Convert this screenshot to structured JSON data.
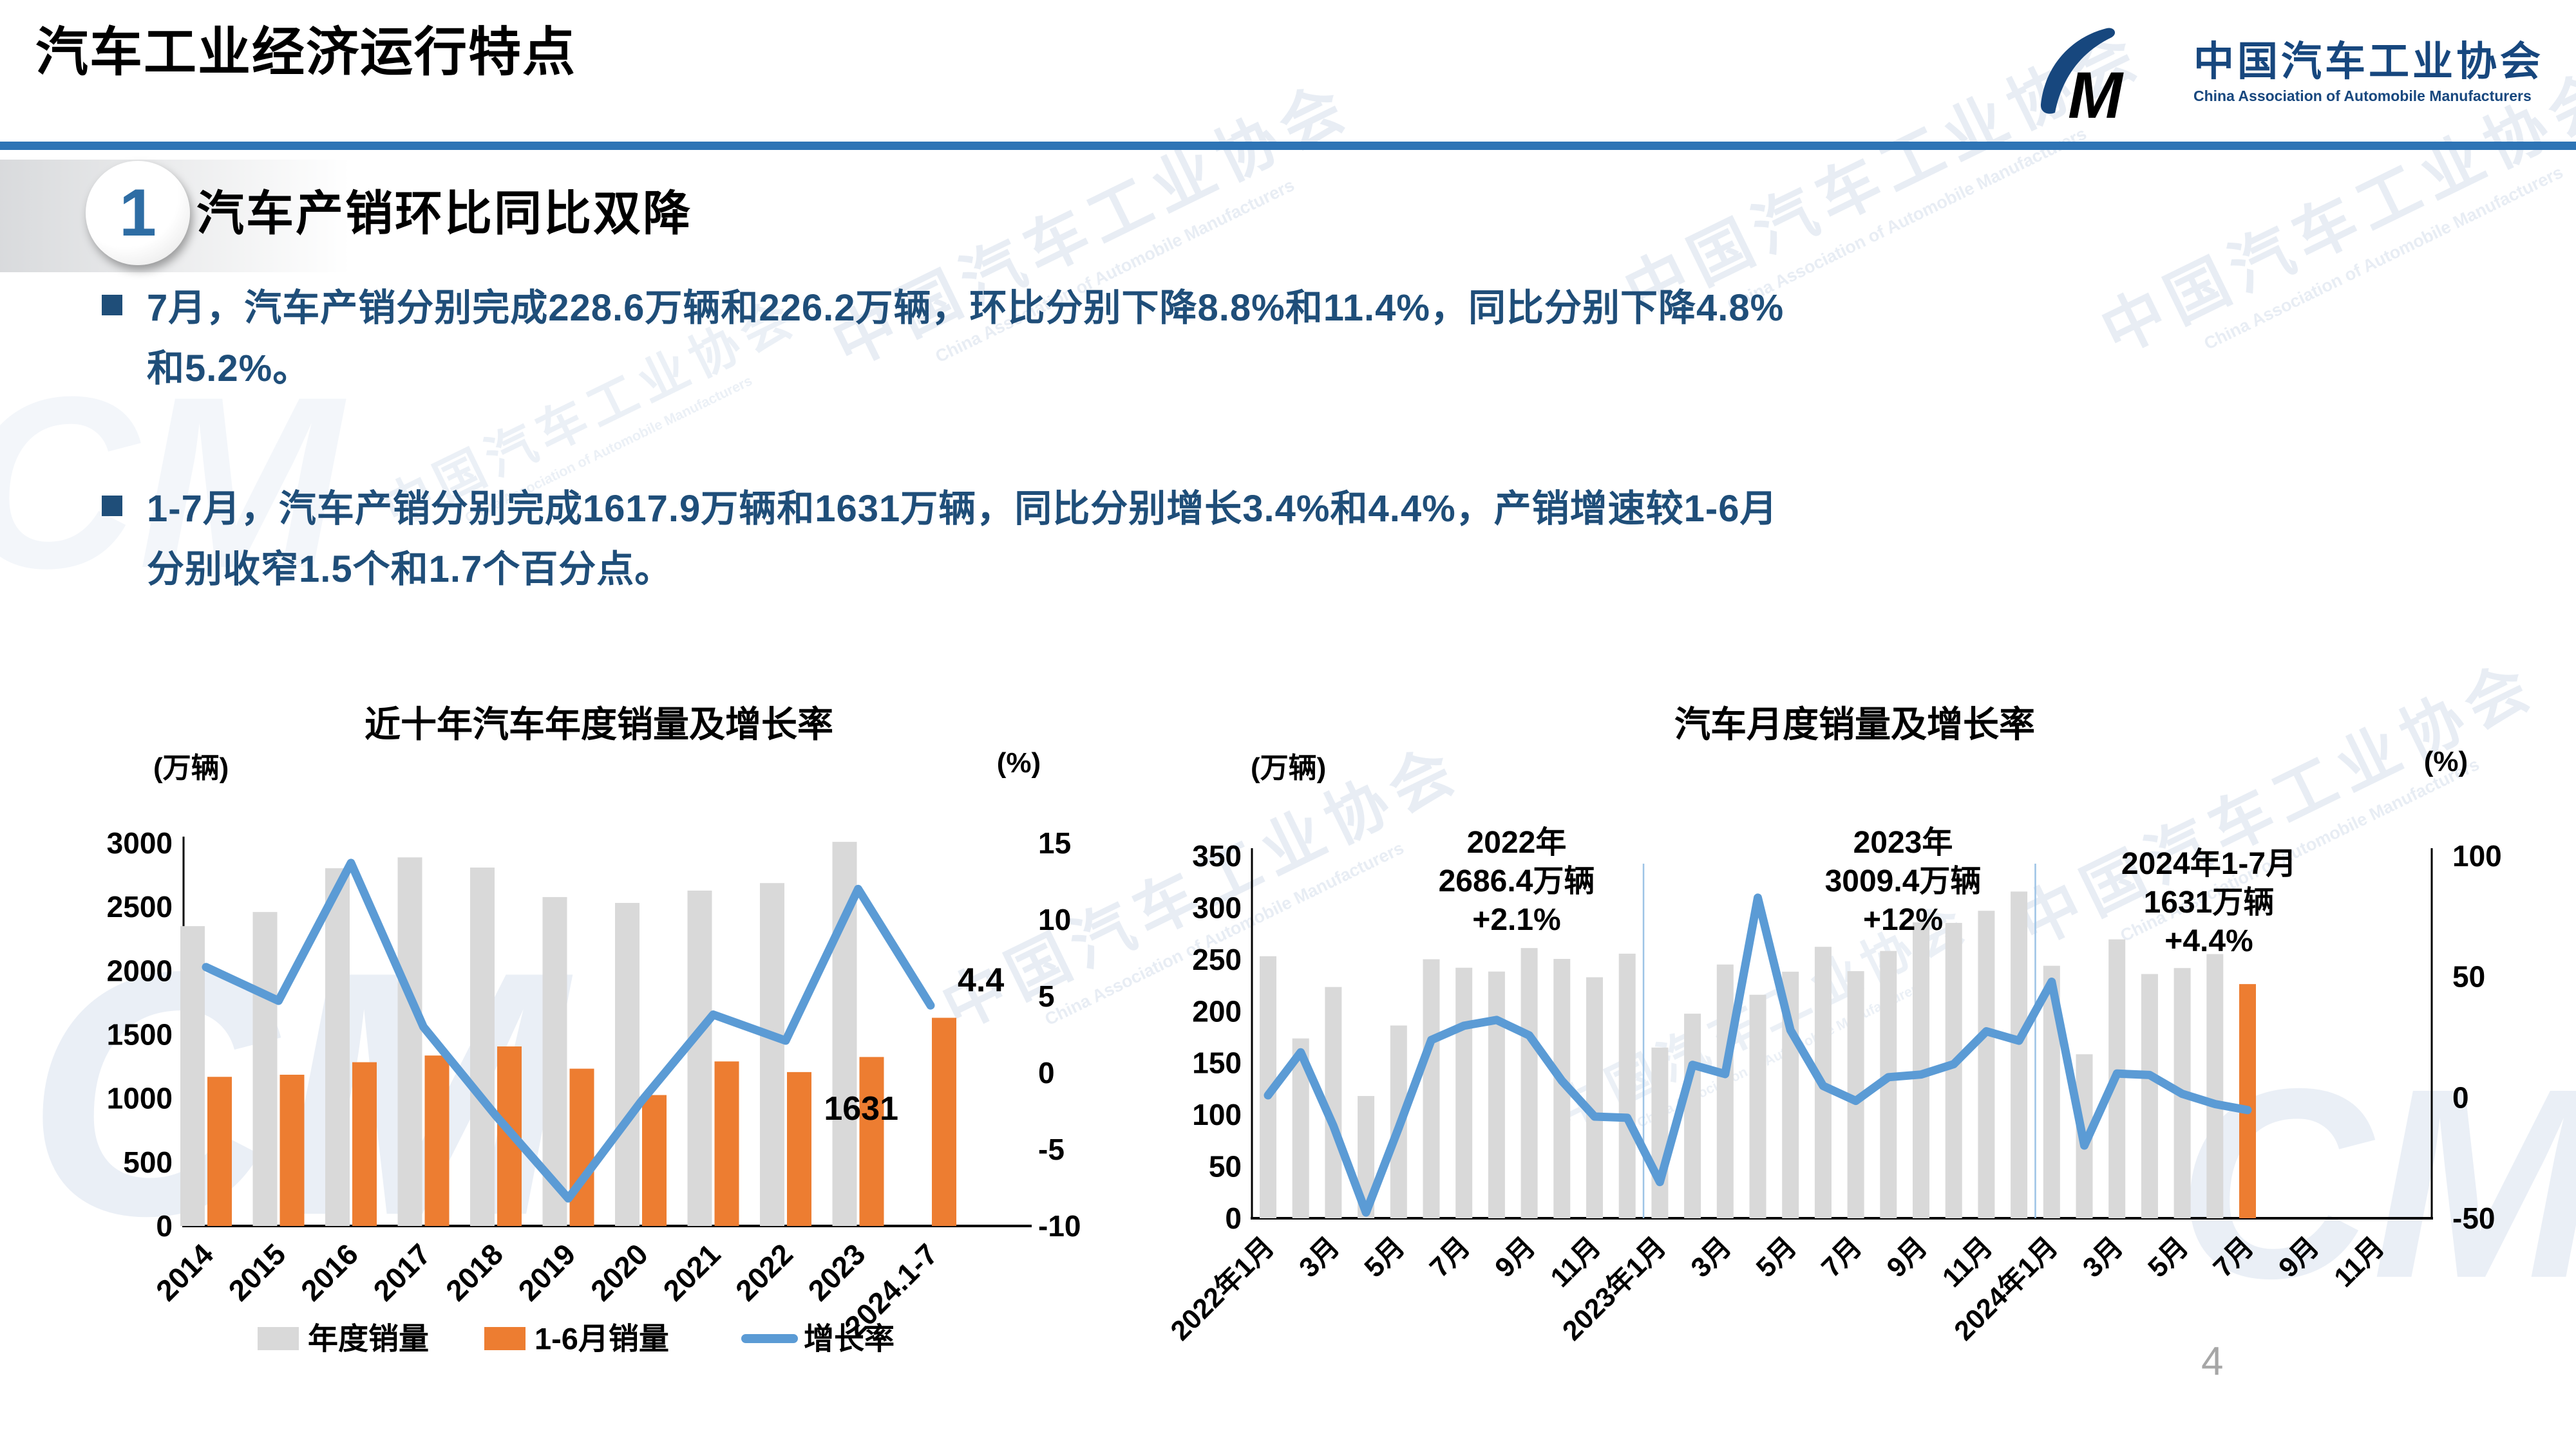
{
  "page": {
    "number": "4"
  },
  "header": {
    "title": "汽车工业经济运行特点",
    "logo_cn": "中国汽车工业协会",
    "logo_en": "China Association of Automobile Manufacturers"
  },
  "section": {
    "number": "1",
    "title": "汽车产销环比同比双降"
  },
  "bullets": [
    {
      "text": "7月，汽车产销分别完成228.6万辆和226.2万辆，环比分别下降8.8%和11.4%，同比分别下降4.8%\n和5.2%。"
    },
    {
      "text": "1-7月，汽车产销分别完成1617.9万辆和1631万辆，同比分别增长3.4%和4.4%，产销增速较1-6月\n分别收窄1.5个和1.7个百分点。"
    }
  ],
  "watermark": {
    "cn": "中国汽车工业协会",
    "en": "China Association of Automobile Manufacturers",
    "mark": "CM"
  },
  "colors": {
    "bar_gray": "#D9D9D9",
    "bar_orange": "#ED7D31",
    "line_blue": "#5B9BD5",
    "separator_blue": "#9DC3E6",
    "callout_gray": "#7F7F7F",
    "accent_rule": "#2E74B5",
    "text_navy": "#1F4E79"
  },
  "chart_data": [
    {
      "type": "bar+line",
      "title": "近十年汽车年度销量及增长率",
      "left_axis_label": "(万辆)",
      "right_axis_label": "(%)",
      "categories": [
        "2014",
        "2015",
        "2016",
        "2017",
        "2018",
        "2019",
        "2020",
        "2021",
        "2022",
        "2023",
        "2024.1-7"
      ],
      "left_axis": {
        "min": 0,
        "max": 3000,
        "step": 500
      },
      "right_axis": {
        "min": -10,
        "max": 15,
        "step": 5
      },
      "left_ticks": [
        "0",
        "500",
        "1000",
        "1500",
        "2000",
        "2500",
        "3000"
      ],
      "right_ticks": [
        "-10",
        "-5",
        "0",
        "5",
        "10",
        "15"
      ],
      "series": [
        {
          "name": "年度销量",
          "type": "bar",
          "axis": "left",
          "color": "#D9D9D9",
          "values": [
            2349.2,
            2459.8,
            2802.8,
            2887.9,
            2808.1,
            2576.9,
            2531.1,
            2627.5,
            2686.4,
            3009.4,
            null
          ]
        },
        {
          "name": "1-6月销量",
          "type": "bar",
          "axis": "left",
          "color": "#ED7D31",
          "values": [
            1168.4,
            1185.0,
            1283.0,
            1335.4,
            1406.6,
            1232.3,
            1025.7,
            1289.1,
            1205.7,
            1323.9,
            1631
          ]
        },
        {
          "name": "增长率",
          "type": "line",
          "axis": "right",
          "color": "#5B9BD5",
          "values": [
            6.9,
            4.7,
            13.7,
            3.0,
            -2.8,
            -8.2,
            -1.9,
            3.8,
            2.1,
            12.0,
            4.4
          ]
        }
      ],
      "callouts": {
        "last_growth": "4.4",
        "last_bar": "1631"
      },
      "legend_position": "bottom"
    },
    {
      "type": "bar+line",
      "title": "汽车月度销量及增长率",
      "left_axis_label": "(万辆)",
      "right_axis_label": "(%)",
      "left_axis": {
        "min": 0,
        "max": 350,
        "step": 50
      },
      "right_axis": {
        "min": -50,
        "max": 100,
        "step": 50
      },
      "left_ticks": [
        "0",
        "50",
        "100",
        "150",
        "200",
        "250",
        "300",
        "350"
      ],
      "right_ticks": [
        "-50",
        "0",
        "50",
        "100"
      ],
      "x_tick_labels": [
        "2022年1月",
        "3月",
        "5月",
        "7月",
        "9月",
        "11月",
        "2023年1月",
        "3月",
        "5月",
        "7月",
        "9月",
        "11月",
        "2024年1月",
        "3月",
        "5月",
        "7月",
        "9月",
        "11月"
      ],
      "months_total_slots": 36,
      "monthly_sales": {
        "y2022": [
          253.1,
          173.7,
          223.4,
          118.1,
          186.2,
          250.2,
          242.0,
          238.3,
          261.0,
          250.5,
          232.8,
          255.6
        ],
        "y2023": [
          164.9,
          197.6,
          245.1,
          215.9,
          238.2,
          262.2,
          238.7,
          258.2,
          285.8,
          285.3,
          297.0,
          315.6
        ],
        "y2024": [
          243.9,
          158.4,
          269.4,
          235.9,
          241.7,
          255.2,
          226.2
        ]
      },
      "monthly_growth": {
        "y2022": [
          0.9,
          18.7,
          -11.7,
          -47.6,
          -12.6,
          23.8,
          29.7,
          32.1,
          25.7,
          6.9,
          -7.9,
          -8.4
        ],
        "y2023": [
          -35.0,
          13.5,
          9.7,
          82.7,
          27.9,
          4.8,
          -1.4,
          8.4,
          9.5,
          13.8,
          27.4,
          23.5
        ],
        "y2024": [
          47.9,
          -19.9,
          9.9,
          9.3,
          1.5,
          -2.7,
          -5.2
        ]
      },
      "highlight_last_bar": true,
      "year_separators_after_month": [
        12,
        24
      ],
      "annotations": [
        {
          "lines": [
            "2022年",
            "2686.4万辆",
            "+2.1%"
          ]
        },
        {
          "lines": [
            "2023年",
            "3009.4万辆",
            "+12%"
          ]
        },
        {
          "lines": [
            "2024年1-7月",
            "1631万辆",
            "+4.4%"
          ]
        }
      ]
    }
  ]
}
